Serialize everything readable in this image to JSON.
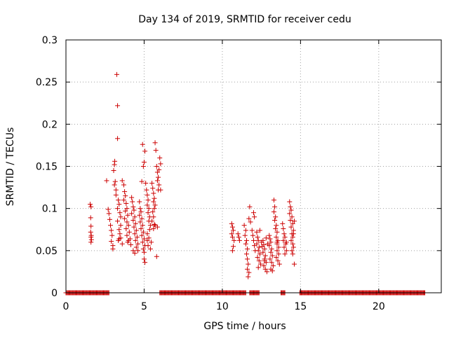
{
  "chart_data": {
    "type": "scatter",
    "title": "Day 134 of 2019, SRMTID for receiver cedu",
    "xlabel": "GPS time / hours",
    "ylabel": "SRMTID / TECUs",
    "xlim": [
      0,
      24
    ],
    "ylim": [
      0,
      0.3
    ],
    "x_ticks": [
      0,
      5,
      10,
      15,
      20
    ],
    "y_ticks": [
      0,
      0.05,
      0.1,
      0.15,
      0.2,
      0.25,
      0.3
    ],
    "x_tick_labels": [
      "0",
      "5",
      "10",
      "15",
      "20"
    ],
    "y_tick_labels": [
      "0",
      "0.05",
      "0.1",
      "0.15",
      "0.2",
      "0.25",
      "0.3"
    ],
    "grid": true,
    "marker": "+",
    "series_color": "#cc0000",
    "series": [
      {
        "name": "SRMTID",
        "points": [
          [
            1.55,
            0.105
          ],
          [
            1.6,
            0.102
          ],
          [
            1.58,
            0.089
          ],
          [
            1.6,
            0.079
          ],
          [
            1.58,
            0.072
          ],
          [
            1.62,
            0.068
          ],
          [
            1.6,
            0.066
          ],
          [
            1.63,
            0.063
          ],
          [
            1.6,
            0.06
          ],
          [
            2.6,
            0.133
          ],
          [
            2.7,
            0.099
          ],
          [
            2.75,
            0.094
          ],
          [
            2.8,
            0.087
          ],
          [
            2.85,
            0.08
          ],
          [
            2.9,
            0.074
          ],
          [
            2.95,
            0.068
          ],
          [
            2.9,
            0.061
          ],
          [
            3.0,
            0.056
          ],
          [
            3.0,
            0.052
          ],
          [
            3.05,
            0.145
          ],
          [
            3.1,
            0.152
          ],
          [
            3.12,
            0.156
          ],
          [
            3.15,
            0.132
          ],
          [
            3.1,
            0.128
          ],
          [
            3.2,
            0.122
          ],
          [
            3.25,
            0.259
          ],
          [
            3.3,
            0.222
          ],
          [
            3.3,
            0.183
          ],
          [
            3.2,
            0.116
          ],
          [
            3.35,
            0.11
          ],
          [
            3.4,
            0.105
          ],
          [
            3.3,
            0.1
          ],
          [
            3.45,
            0.095
          ],
          [
            3.5,
            0.09
          ],
          [
            3.3,
            0.085
          ],
          [
            3.5,
            0.08
          ],
          [
            3.4,
            0.075
          ],
          [
            3.45,
            0.07
          ],
          [
            3.5,
            0.065
          ],
          [
            3.35,
            0.062
          ],
          [
            3.6,
            0.058
          ],
          [
            3.4,
            0.064
          ],
          [
            3.6,
            0.133
          ],
          [
            3.7,
            0.128
          ],
          [
            3.75,
            0.12
          ],
          [
            3.8,
            0.115
          ],
          [
            3.7,
            0.11
          ],
          [
            3.85,
            0.106
          ],
          [
            3.9,
            0.1
          ],
          [
            3.8,
            0.097
          ],
          [
            3.95,
            0.092
          ],
          [
            3.75,
            0.088
          ],
          [
            3.9,
            0.084
          ],
          [
            4.0,
            0.08
          ],
          [
            3.85,
            0.076
          ],
          [
            4.05,
            0.072
          ],
          [
            3.9,
            0.068
          ],
          [
            4.1,
            0.064
          ],
          [
            3.95,
            0.06
          ],
          [
            4.15,
            0.057
          ],
          [
            4.0,
            0.062
          ],
          [
            4.2,
            0.113
          ],
          [
            4.25,
            0.108
          ],
          [
            4.3,
            0.102
          ],
          [
            4.35,
            0.098
          ],
          [
            4.2,
            0.094
          ],
          [
            4.4,
            0.09
          ],
          [
            4.3,
            0.086
          ],
          [
            4.45,
            0.082
          ],
          [
            4.35,
            0.078
          ],
          [
            4.5,
            0.074
          ],
          [
            4.4,
            0.07
          ],
          [
            4.55,
            0.066
          ],
          [
            4.45,
            0.062
          ],
          [
            4.6,
            0.058
          ],
          [
            4.5,
            0.054
          ],
          [
            4.3,
            0.05
          ],
          [
            4.4,
            0.047
          ],
          [
            4.6,
            0.05
          ],
          [
            4.7,
            0.108
          ],
          [
            4.75,
            0.1
          ],
          [
            4.8,
            0.096
          ],
          [
            4.7,
            0.092
          ],
          [
            4.85,
            0.088
          ],
          [
            4.75,
            0.084
          ],
          [
            4.9,
            0.08
          ],
          [
            4.8,
            0.076
          ],
          [
            4.95,
            0.072
          ],
          [
            4.85,
            0.068
          ],
          [
            5.0,
            0.064
          ],
          [
            4.9,
            0.06
          ],
          [
            5.05,
            0.056
          ],
          [
            4.95,
            0.052
          ],
          [
            5.0,
            0.048
          ],
          [
            5.0,
            0.04
          ],
          [
            5.05,
            0.036
          ],
          [
            4.85,
            0.132
          ],
          [
            4.9,
            0.176
          ],
          [
            5.05,
            0.168
          ],
          [
            5.0,
            0.155
          ],
          [
            4.95,
            0.15
          ],
          [
            5.1,
            0.13
          ],
          [
            5.15,
            0.122
          ],
          [
            5.2,
            0.116
          ],
          [
            5.25,
            0.11
          ],
          [
            5.2,
            0.104
          ],
          [
            5.3,
            0.1
          ],
          [
            5.25,
            0.095
          ],
          [
            5.35,
            0.09
          ],
          [
            5.3,
            0.085
          ],
          [
            5.4,
            0.08
          ],
          [
            5.35,
            0.075
          ],
          [
            5.2,
            0.07
          ],
          [
            5.3,
            0.065
          ],
          [
            5.45,
            0.06
          ],
          [
            5.25,
            0.056
          ],
          [
            5.4,
            0.052
          ],
          [
            5.2,
            0.062
          ],
          [
            5.5,
            0.13
          ],
          [
            5.55,
            0.124
          ],
          [
            5.6,
            0.118
          ],
          [
            5.65,
            0.112
          ],
          [
            5.6,
            0.108
          ],
          [
            5.7,
            0.104
          ],
          [
            5.65,
            0.1
          ],
          [
            5.55,
            0.096
          ],
          [
            5.6,
            0.09
          ],
          [
            5.5,
            0.085
          ],
          [
            5.65,
            0.081
          ],
          [
            5.7,
            0.08
          ],
          [
            5.6,
            0.076
          ],
          [
            5.7,
            0.178
          ],
          [
            5.75,
            0.169
          ],
          [
            5.8,
            0.15
          ],
          [
            5.85,
            0.143
          ],
          [
            5.9,
            0.137
          ],
          [
            5.85,
            0.133
          ],
          [
            5.95,
            0.128
          ],
          [
            5.9,
            0.122
          ],
          [
            6.0,
            0.16
          ],
          [
            6.05,
            0.153
          ],
          [
            5.95,
            0.146
          ],
          [
            6.05,
            0.122
          ],
          [
            5.85,
            0.078
          ],
          [
            5.8,
            0.043
          ],
          [
            10.6,
            0.082
          ],
          [
            10.65,
            0.078
          ],
          [
            10.7,
            0.074
          ],
          [
            10.6,
            0.07
          ],
          [
            10.65,
            0.066
          ],
          [
            10.75,
            0.062
          ],
          [
            10.7,
            0.055
          ],
          [
            10.65,
            0.05
          ],
          [
            11.0,
            0.07
          ],
          [
            11.05,
            0.066
          ],
          [
            11.1,
            0.062
          ],
          [
            11.4,
            0.08
          ],
          [
            11.5,
            0.074
          ],
          [
            11.45,
            0.068
          ],
          [
            11.55,
            0.062
          ],
          [
            11.5,
            0.058
          ],
          [
            11.6,
            0.052
          ],
          [
            11.55,
            0.046
          ],
          [
            11.6,
            0.04
          ],
          [
            11.65,
            0.034
          ],
          [
            11.6,
            0.028
          ],
          [
            11.7,
            0.024
          ],
          [
            11.65,
            0.019
          ],
          [
            11.75,
            0.102
          ],
          [
            11.7,
            0.088
          ],
          [
            11.8,
            0.084
          ],
          [
            11.9,
            0.074
          ],
          [
            11.95,
            0.068
          ],
          [
            12.0,
            0.095
          ],
          [
            12.05,
            0.09
          ],
          [
            12.0,
            0.062
          ],
          [
            12.05,
            0.056
          ],
          [
            12.1,
            0.05
          ],
          [
            12.2,
            0.072
          ],
          [
            12.25,
            0.066
          ],
          [
            12.3,
            0.062
          ],
          [
            12.2,
            0.058
          ],
          [
            12.35,
            0.054
          ],
          [
            12.3,
            0.05
          ],
          [
            12.4,
            0.046
          ],
          [
            12.25,
            0.042
          ],
          [
            12.35,
            0.038
          ],
          [
            12.45,
            0.034
          ],
          [
            12.3,
            0.03
          ],
          [
            12.5,
            0.06
          ],
          [
            12.55,
            0.055
          ],
          [
            12.4,
            0.074
          ],
          [
            12.6,
            0.062
          ],
          [
            12.65,
            0.057
          ],
          [
            12.7,
            0.052
          ],
          [
            12.6,
            0.048
          ],
          [
            12.75,
            0.044
          ],
          [
            12.7,
            0.04
          ],
          [
            12.8,
            0.036
          ],
          [
            12.65,
            0.032
          ],
          [
            12.75,
            0.028
          ],
          [
            12.85,
            0.025
          ],
          [
            12.7,
            0.038
          ],
          [
            12.8,
            0.065
          ],
          [
            12.9,
            0.058
          ],
          [
            13.0,
            0.068
          ],
          [
            13.05,
            0.064
          ],
          [
            13.1,
            0.06
          ],
          [
            13.0,
            0.056
          ],
          [
            13.15,
            0.052
          ],
          [
            13.1,
            0.048
          ],
          [
            13.2,
            0.044
          ],
          [
            13.05,
            0.04
          ],
          [
            13.15,
            0.036
          ],
          [
            13.25,
            0.032
          ],
          [
            13.1,
            0.028
          ],
          [
            13.2,
            0.026
          ],
          [
            13.3,
            0.11
          ],
          [
            13.35,
            0.102
          ],
          [
            13.3,
            0.096
          ],
          [
            13.4,
            0.09
          ],
          [
            13.35,
            0.086
          ],
          [
            13.45,
            0.08
          ],
          [
            13.4,
            0.076
          ],
          [
            13.5,
            0.072
          ],
          [
            13.45,
            0.066
          ],
          [
            13.55,
            0.062
          ],
          [
            13.5,
            0.058
          ],
          [
            13.6,
            0.054
          ],
          [
            13.5,
            0.05
          ],
          [
            13.6,
            0.046
          ],
          [
            13.45,
            0.042
          ],
          [
            13.55,
            0.038
          ],
          [
            13.65,
            0.034
          ],
          [
            13.5,
            0.06
          ],
          [
            13.85,
            0.082
          ],
          [
            13.9,
            0.076
          ],
          [
            13.95,
            0.07
          ],
          [
            14.0,
            0.066
          ],
          [
            13.9,
            0.062
          ],
          [
            14.05,
            0.058
          ],
          [
            13.95,
            0.054
          ],
          [
            14.1,
            0.05
          ],
          [
            14.0,
            0.046
          ],
          [
            14.1,
            0.06
          ],
          [
            14.3,
            0.108
          ],
          [
            14.35,
            0.102
          ],
          [
            14.4,
            0.098
          ],
          [
            14.3,
            0.094
          ],
          [
            14.45,
            0.09
          ],
          [
            14.35,
            0.086
          ],
          [
            14.5,
            0.082
          ],
          [
            14.4,
            0.078
          ],
          [
            14.55,
            0.074
          ],
          [
            14.45,
            0.07
          ],
          [
            14.5,
            0.066
          ],
          [
            14.4,
            0.062
          ],
          [
            14.5,
            0.058
          ],
          [
            14.55,
            0.054
          ],
          [
            14.45,
            0.05
          ],
          [
            14.5,
            0.046
          ],
          [
            14.6,
            0.085
          ],
          [
            14.55,
            0.07
          ],
          [
            14.6,
            0.034
          ]
        ],
        "zero_segments": [
          [
            0.0,
            2.75
          ],
          [
            6.0,
            11.5
          ],
          [
            11.75,
            12.35
          ],
          [
            13.75,
            14.0
          ],
          [
            14.95,
            22.95
          ]
        ]
      }
    ]
  }
}
